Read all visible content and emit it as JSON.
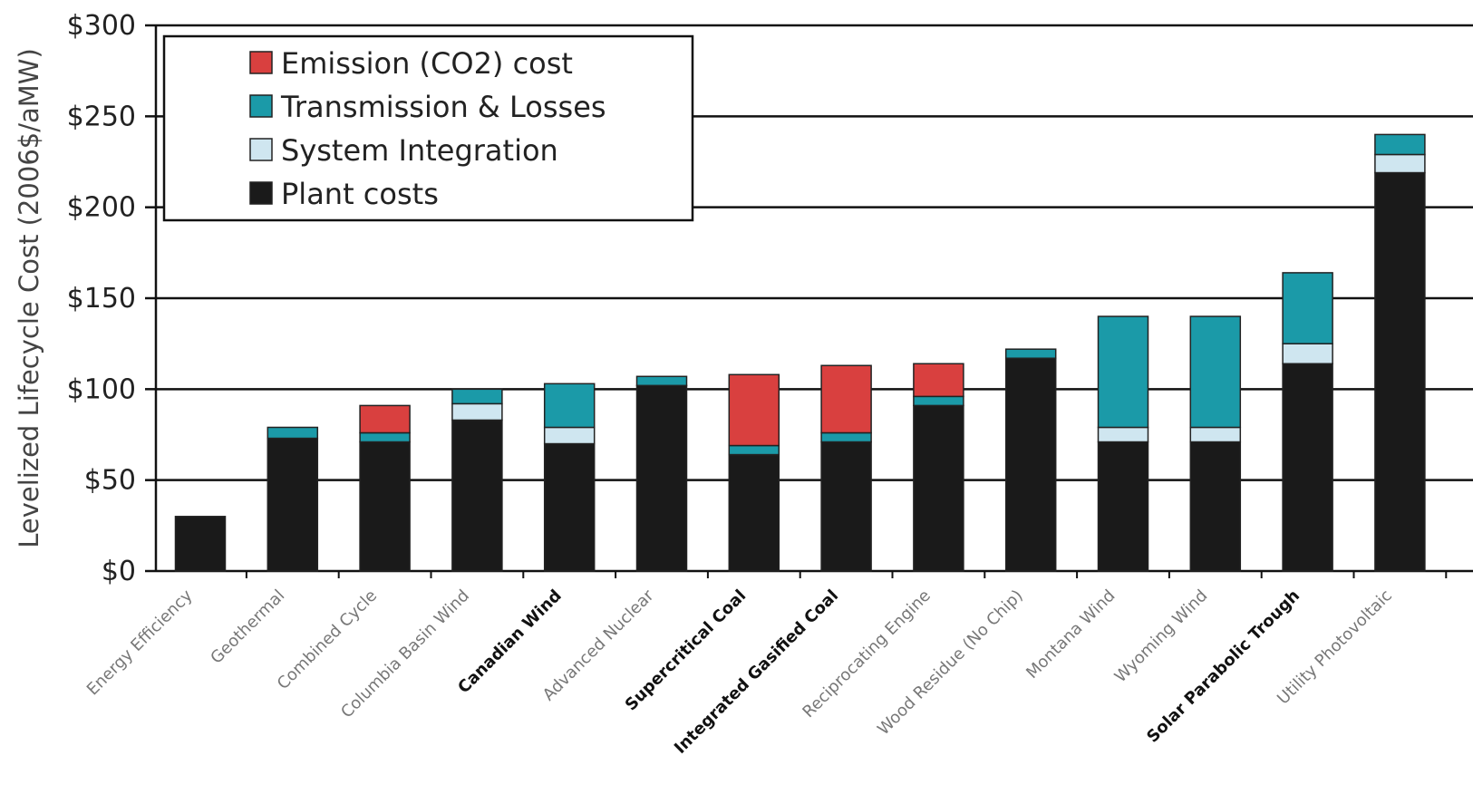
{
  "chart_data": {
    "type": "bar",
    "stacked": true,
    "title": "",
    "xlabel": "",
    "ylabel": "Levelized Lifecycle Cost (2006$/aMW)",
    "ylim": [
      0,
      300
    ],
    "yticks": [
      0,
      50,
      100,
      150,
      200,
      250,
      300
    ],
    "ytick_labels": [
      "$0",
      "$50",
      "$100",
      "$150",
      "$200",
      "$250",
      "$300"
    ],
    "grid": true,
    "legend_position": "top-left",
    "categories": [
      "Energy Efficiency",
      "Geothermal",
      "Combined Cycle",
      "Columbia Basin Wind",
      "Canadian Wind",
      "Advanced Nuclear",
      "Supercritical Coal",
      "Integrated Gasified Coal",
      "Reciprocating Engine",
      "Wood Residue (No Chip)",
      "Montana Wind",
      "Wyoming Wind",
      "Solar Parabolic Trough",
      "Utility Photovoltaic"
    ],
    "bold_categories": [
      "Canadian Wind",
      "Supercritical Coal",
      "Integrated Gasified Coal",
      "Solar Parabolic Trough"
    ],
    "series": [
      {
        "name": "Plant costs",
        "color": "#1a1a1a",
        "values": [
          30,
          73,
          71,
          83,
          70,
          102,
          64,
          71,
          91,
          117,
          71,
          71,
          114,
          219
        ]
      },
      {
        "name": "System Integration",
        "color": "#cfe6f0",
        "values": [
          0,
          0,
          0,
          9,
          9,
          0,
          0,
          0,
          0,
          0,
          8,
          8,
          11,
          10
        ]
      },
      {
        "name": "Transmission & Losses",
        "color": "#1b9aa8",
        "values": [
          0,
          6,
          5,
          8,
          24,
          5,
          5,
          5,
          5,
          5,
          61,
          61,
          39,
          11
        ]
      },
      {
        "name": "Emission (CO2) cost",
        "color": "#d9403f",
        "values": [
          0,
          0,
          15,
          0,
          0,
          0,
          39,
          37,
          18,
          0,
          0,
          0,
          0,
          0
        ]
      }
    ],
    "legend_order": [
      "Emission (CO2) cost",
      "Transmission & Losses",
      "System Integration",
      "Plant costs"
    ]
  }
}
